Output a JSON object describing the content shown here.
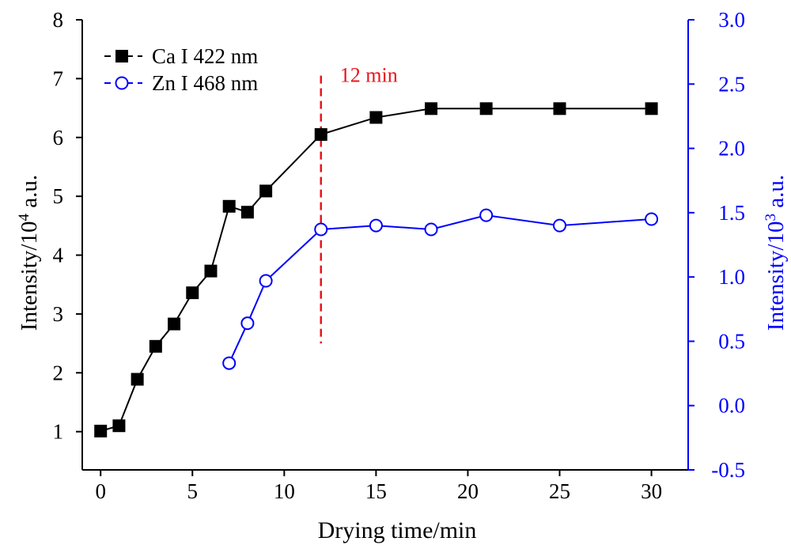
{
  "chart_data": {
    "type": "line",
    "xlabel": "Drying time/min",
    "xlim": [
      -1,
      32
    ],
    "xticks": [
      0,
      5,
      10,
      15,
      20,
      25,
      30
    ],
    "xtick_labels": [
      "0",
      "5",
      "10",
      "15",
      "20",
      "25",
      "30"
    ],
    "y_left": {
      "label_main": "Intensity/10",
      "label_sup": "4",
      "label_unit": " a.u.",
      "lim": [
        0.35,
        8
      ],
      "ticks": [
        1,
        2,
        3,
        4,
        5,
        6,
        7,
        8
      ],
      "tick_labels": [
        "1",
        "2",
        "3",
        "4",
        "5",
        "6",
        "7",
        "8"
      ],
      "color": "#000000"
    },
    "y_right": {
      "label_main": "Intensity/10",
      "label_sup": "3",
      "label_unit": " a.u.",
      "lim": [
        -0.5,
        3.0
      ],
      "ticks": [
        -0.5,
        0.0,
        0.5,
        1.0,
        1.5,
        2.0,
        2.5,
        3.0
      ],
      "tick_labels": [
        "-0.5",
        "0.0",
        "0.5",
        "1.0",
        "1.5",
        "2.0",
        "2.5",
        "3.0"
      ],
      "color": "#0000ff"
    },
    "series": [
      {
        "name": "Ca I 422 nm",
        "axis": "left",
        "color": "#000000",
        "marker": "filled-square",
        "x": [
          0,
          1,
          2,
          3,
          4,
          5,
          6,
          7,
          8,
          9,
          12,
          15,
          18,
          21,
          25,
          30
        ],
        "y": [
          1.01,
          1.1,
          1.89,
          2.45,
          2.83,
          3.36,
          3.73,
          4.83,
          4.73,
          5.09,
          6.05,
          6.34,
          6.49,
          6.49,
          6.49,
          6.49
        ]
      },
      {
        "name": "Zn I 468 nm",
        "axis": "right",
        "color": "#0000ff",
        "marker": "open-circle",
        "x": [
          7,
          8,
          9,
          12,
          15,
          18,
          21,
          25,
          30
        ],
        "y": [
          0.33,
          0.64,
          0.97,
          1.37,
          1.4,
          1.37,
          1.48,
          1.4,
          1.45
        ]
      }
    ],
    "annotation": {
      "text": "12 min",
      "x": 12,
      "y_from": 2.5,
      "y_to": 7.05,
      "color": "#e8141c"
    },
    "legend_placement": "top-left",
    "grid": false
  }
}
